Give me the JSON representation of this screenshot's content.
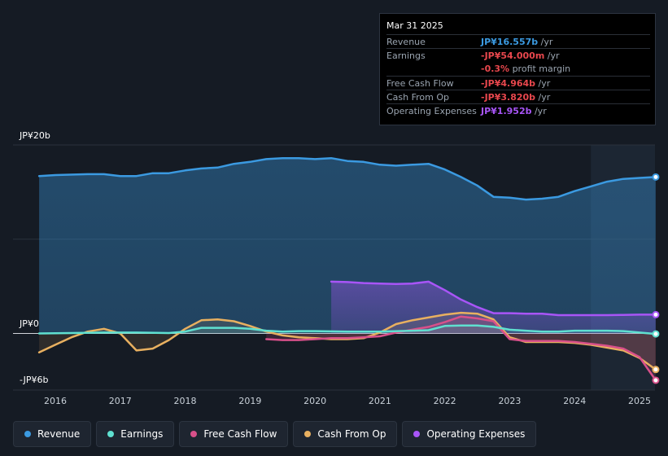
{
  "tooltip": {
    "date": "Mar 31 2025",
    "rows": [
      {
        "label": "Revenue",
        "value": "JP¥16.557b",
        "unit": " /yr",
        "color": "#3b9ae1"
      },
      {
        "label": "Earnings",
        "value": "-JP¥54.000m",
        "unit": " /yr",
        "color": "#e8474d"
      },
      {
        "label": "",
        "value": "-0.3%",
        "unit": " profit margin",
        "color": "#e8474d"
      },
      {
        "label": "Free Cash Flow",
        "value": "-JP¥4.964b",
        "unit": " /yr",
        "color": "#e8474d"
      },
      {
        "label": "Cash From Op",
        "value": "-JP¥3.820b",
        "unit": " /yr",
        "color": "#e8474d"
      },
      {
        "label": "Operating Expenses",
        "value": "JP¥1.952b",
        "unit": " /yr",
        "color": "#a855f7"
      }
    ]
  },
  "axis": {
    "top_label": "JP¥20b",
    "zero_label": "JP¥0",
    "bottom_label": "-JP¥6b"
  },
  "legend": [
    {
      "label": "Revenue",
      "color": "#3b9ae1"
    },
    {
      "label": "Earnings",
      "color": "#5fe0d0"
    },
    {
      "label": "Free Cash Flow",
      "color": "#d8508a"
    },
    {
      "label": "Cash From Op",
      "color": "#e8b060"
    },
    {
      "label": "Operating Expenses",
      "color": "#a855f7"
    }
  ],
  "chart_data": {
    "type": "area",
    "x_ticks": [
      "2016",
      "2017",
      "2018",
      "2019",
      "2020",
      "2021",
      "2022",
      "2023",
      "2024",
      "2025"
    ],
    "ylim": [
      -6,
      20
    ],
    "highlight_range": [
      2024.25,
      2025.25
    ],
    "series": [
      {
        "name": "Revenue",
        "color": "#3b9ae1",
        "x": [
          2015.75,
          2016.0,
          2016.5,
          2016.75,
          2017.0,
          2017.25,
          2017.5,
          2017.75,
          2018.0,
          2018.25,
          2018.5,
          2018.75,
          2019.0,
          2019.25,
          2019.5,
          2019.75,
          2020.0,
          2020.25,
          2020.5,
          2020.75,
          2021.0,
          2021.25,
          2021.5,
          2021.75,
          2022.0,
          2022.25,
          2022.5,
          2022.75,
          2023.0,
          2023.25,
          2023.5,
          2023.75,
          2024.0,
          2024.25,
          2024.5,
          2024.75,
          2025.0,
          2025.25
        ],
        "values": [
          16.7,
          16.8,
          16.9,
          16.9,
          16.7,
          16.7,
          17.0,
          17.0,
          17.3,
          17.5,
          17.6,
          18.0,
          18.2,
          18.5,
          18.6,
          18.6,
          18.5,
          18.6,
          18.3,
          18.2,
          17.9,
          17.8,
          17.9,
          18.0,
          17.4,
          16.6,
          15.7,
          14.5,
          14.4,
          14.2,
          14.3,
          14.5,
          15.1,
          15.6,
          16.1,
          16.4,
          16.5,
          16.6
        ]
      },
      {
        "name": "Earnings",
        "color": "#5fe0d0",
        "x": [
          2015.75,
          2016.25,
          2016.75,
          2017.25,
          2017.75,
          2018.0,
          2018.25,
          2018.5,
          2018.75,
          2019.0,
          2019.25,
          2019.5,
          2019.75,
          2020.0,
          2020.5,
          2021.0,
          2021.5,
          2021.75,
          2022.0,
          2022.25,
          2022.5,
          2022.75,
          2023.0,
          2023.25,
          2023.5,
          2023.75,
          2024.0,
          2024.5,
          2024.75,
          2025.0,
          2025.25
        ],
        "values": [
          0.0,
          0.05,
          0.1,
          0.1,
          0.05,
          0.2,
          0.6,
          0.6,
          0.6,
          0.5,
          0.3,
          0.2,
          0.25,
          0.25,
          0.2,
          0.2,
          0.3,
          0.35,
          0.8,
          0.85,
          0.85,
          0.7,
          0.4,
          0.3,
          0.2,
          0.2,
          0.3,
          0.3,
          0.25,
          0.1,
          -0.05
        ]
      },
      {
        "name": "Free Cash Flow",
        "color": "#d8508a",
        "x": [
          2019.25,
          2019.5,
          2019.75,
          2020.0,
          2020.25,
          2020.5,
          2020.75,
          2021.0,
          2021.25,
          2021.5,
          2021.75,
          2022.0,
          2022.25,
          2022.5,
          2022.75,
          2023.0,
          2023.25,
          2023.5,
          2023.75,
          2024.0,
          2024.25,
          2024.5,
          2024.75,
          2025.0,
          2025.25
        ],
        "values": [
          -0.6,
          -0.7,
          -0.7,
          -0.6,
          -0.5,
          -0.5,
          -0.4,
          -0.3,
          0.1,
          0.4,
          0.7,
          1.2,
          1.8,
          1.6,
          1.3,
          -0.6,
          -0.8,
          -0.8,
          -0.8,
          -0.9,
          -1.1,
          -1.3,
          -1.6,
          -2.5,
          -4.96
        ]
      },
      {
        "name": "Cash From Op",
        "color": "#e8b060",
        "x": [
          2015.75,
          2016.0,
          2016.25,
          2016.5,
          2016.75,
          2017.0,
          2017.25,
          2017.5,
          2017.75,
          2018.0,
          2018.25,
          2018.5,
          2018.75,
          2019.0,
          2019.25,
          2019.5,
          2019.75,
          2020.0,
          2020.25,
          2020.5,
          2020.75,
          2021.0,
          2021.25,
          2021.5,
          2021.75,
          2022.0,
          2022.25,
          2022.5,
          2022.75,
          2023.0,
          2023.25,
          2023.5,
          2023.75,
          2024.0,
          2024.25,
          2024.5,
          2024.75,
          2025.0,
          2025.25
        ],
        "values": [
          -2.0,
          -1.2,
          -0.4,
          0.2,
          0.5,
          0.0,
          -1.8,
          -1.6,
          -0.7,
          0.5,
          1.4,
          1.5,
          1.3,
          0.8,
          0.2,
          -0.2,
          -0.4,
          -0.5,
          -0.6,
          -0.6,
          -0.5,
          0.1,
          1.0,
          1.4,
          1.7,
          2.0,
          2.2,
          2.1,
          1.5,
          -0.4,
          -0.9,
          -0.9,
          -0.9,
          -1.0,
          -1.2,
          -1.5,
          -1.8,
          -2.6,
          -3.82
        ]
      },
      {
        "name": "Operating Expenses",
        "color": "#a855f7",
        "x": [
          2020.25,
          2020.5,
          2020.75,
          2021.0,
          2021.25,
          2021.5,
          2021.75,
          2022.0,
          2022.25,
          2022.5,
          2022.75,
          2023.0,
          2023.25,
          2023.5,
          2023.75,
          2024.0,
          2024.25,
          2024.5,
          2024.75,
          2025.0,
          2025.25
        ],
        "values": [
          5.5,
          5.45,
          5.35,
          5.3,
          5.25,
          5.3,
          5.5,
          4.6,
          3.6,
          2.8,
          2.15,
          2.15,
          2.1,
          2.1,
          1.95,
          1.95,
          1.95,
          1.95,
          1.97,
          2.0,
          2.0
        ]
      }
    ]
  }
}
